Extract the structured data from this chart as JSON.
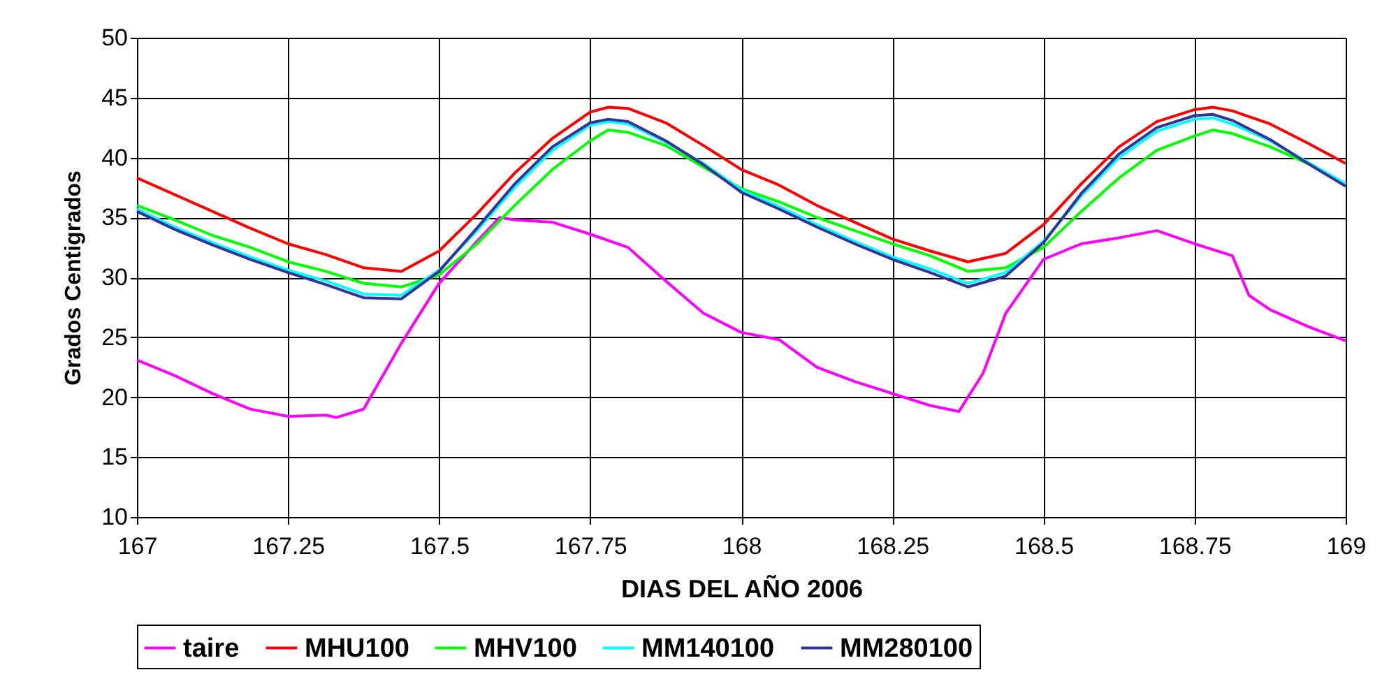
{
  "chart_data": {
    "type": "line",
    "xlabel": "DIAS DEL AÑO 2006",
    "ylabel": "Grados Centigrados",
    "x": [
      167,
      167.0625,
      167.125,
      167.1875,
      167.25,
      167.3125,
      167.375,
      167.4375,
      167.5,
      167.5625,
      167.625,
      167.6875,
      167.75,
      167.78,
      167.8125,
      167.875,
      167.9375,
      168,
      168.0625,
      168.125,
      168.1875,
      168.25,
      168.3125,
      168.375,
      168.4375,
      168.5,
      168.5625,
      168.625,
      168.6875,
      168.75,
      168.78,
      168.8125,
      168.875,
      168.9375,
      169
    ],
    "series": [
      {
        "name": "taire",
        "color": "#ff00ff",
        "x": [
          167,
          167.0625,
          167.125,
          167.1875,
          167.25,
          167.3125,
          167.33,
          167.375,
          167.4375,
          167.5,
          167.5625,
          167.6,
          167.625,
          167.6875,
          167.75,
          167.8125,
          167.875,
          167.9375,
          168,
          168.0625,
          168.125,
          168.1875,
          168.25,
          168.3125,
          168.36,
          168.4,
          168.4375,
          168.5,
          168.5625,
          168.625,
          168.6875,
          168.75,
          168.8125,
          168.84,
          168.875,
          168.9375,
          169
        ],
        "values": [
          23.1,
          21.8,
          20.3,
          19.0,
          18.4,
          18.5,
          18.3,
          19.0,
          24.5,
          29.5,
          33.0,
          35.0,
          34.8,
          34.6,
          33.6,
          32.5,
          29.7,
          27.0,
          25.4,
          24.8,
          22.5,
          21.3,
          20.3,
          19.3,
          18.8,
          22.0,
          27.0,
          31.5,
          32.8,
          33.3,
          33.9,
          32.8,
          31.8,
          28.5,
          27.3,
          25.9,
          24.7
        ]
      },
      {
        "name": "MHU100",
        "color": "#ff0000",
        "values": [
          38.3,
          36.9,
          35.5,
          34.1,
          32.8,
          31.9,
          30.8,
          30.5,
          32.2,
          35.3,
          38.7,
          41.6,
          43.8,
          44.2,
          44.1,
          42.9,
          41.0,
          39.0,
          37.7,
          36.0,
          34.6,
          33.2,
          32.2,
          31.3,
          32.0,
          34.4,
          37.8,
          40.9,
          43.0,
          44.0,
          44.2,
          43.9,
          42.8,
          41.2,
          39.5
        ]
      },
      {
        "name": "MHV100",
        "color": "#00ff00",
        "values": [
          36.0,
          34.8,
          33.5,
          32.5,
          31.3,
          30.5,
          29.5,
          29.2,
          30.2,
          32.8,
          36.0,
          39.0,
          41.4,
          42.3,
          42.1,
          41.0,
          39.2,
          37.4,
          36.3,
          35.0,
          33.9,
          32.8,
          31.8,
          30.5,
          30.8,
          32.5,
          35.5,
          38.3,
          40.6,
          41.8,
          42.3,
          42.0,
          40.9,
          39.5,
          37.7
        ]
      },
      {
        "name": "MM140100",
        "color": "#00ffff",
        "values": [
          35.7,
          34.2,
          32.9,
          31.7,
          30.6,
          29.7,
          28.6,
          28.5,
          30.6,
          33.9,
          37.5,
          40.6,
          42.7,
          43.0,
          42.8,
          41.3,
          39.5,
          37.3,
          35.9,
          34.4,
          33.0,
          31.7,
          30.7,
          29.5,
          30.4,
          33.0,
          36.8,
          40.0,
          42.2,
          43.2,
          43.3,
          42.8,
          41.4,
          39.6,
          37.8
        ]
      },
      {
        "name": "MM280100",
        "color": "#333399",
        "values": [
          35.5,
          34.0,
          32.7,
          31.5,
          30.4,
          29.4,
          28.3,
          28.2,
          30.5,
          34.1,
          37.8,
          40.9,
          42.9,
          43.2,
          43.0,
          41.4,
          39.4,
          37.1,
          35.7,
          34.2,
          32.8,
          31.5,
          30.4,
          29.2,
          30.1,
          32.9,
          37.0,
          40.3,
          42.5,
          43.5,
          43.6,
          43.1,
          41.5,
          39.5,
          37.6
        ]
      }
    ],
    "xlim": [
      167,
      169
    ],
    "xticks": [
      167,
      167.25,
      167.5,
      167.75,
      168,
      168.25,
      168.5,
      168.75,
      169
    ],
    "ylim": [
      10,
      50
    ],
    "yticks": [
      10,
      15,
      20,
      25,
      30,
      35,
      40,
      45,
      50
    ],
    "grid": true,
    "legend": "bottom",
    "marker": "none",
    "line_style": "solid"
  }
}
